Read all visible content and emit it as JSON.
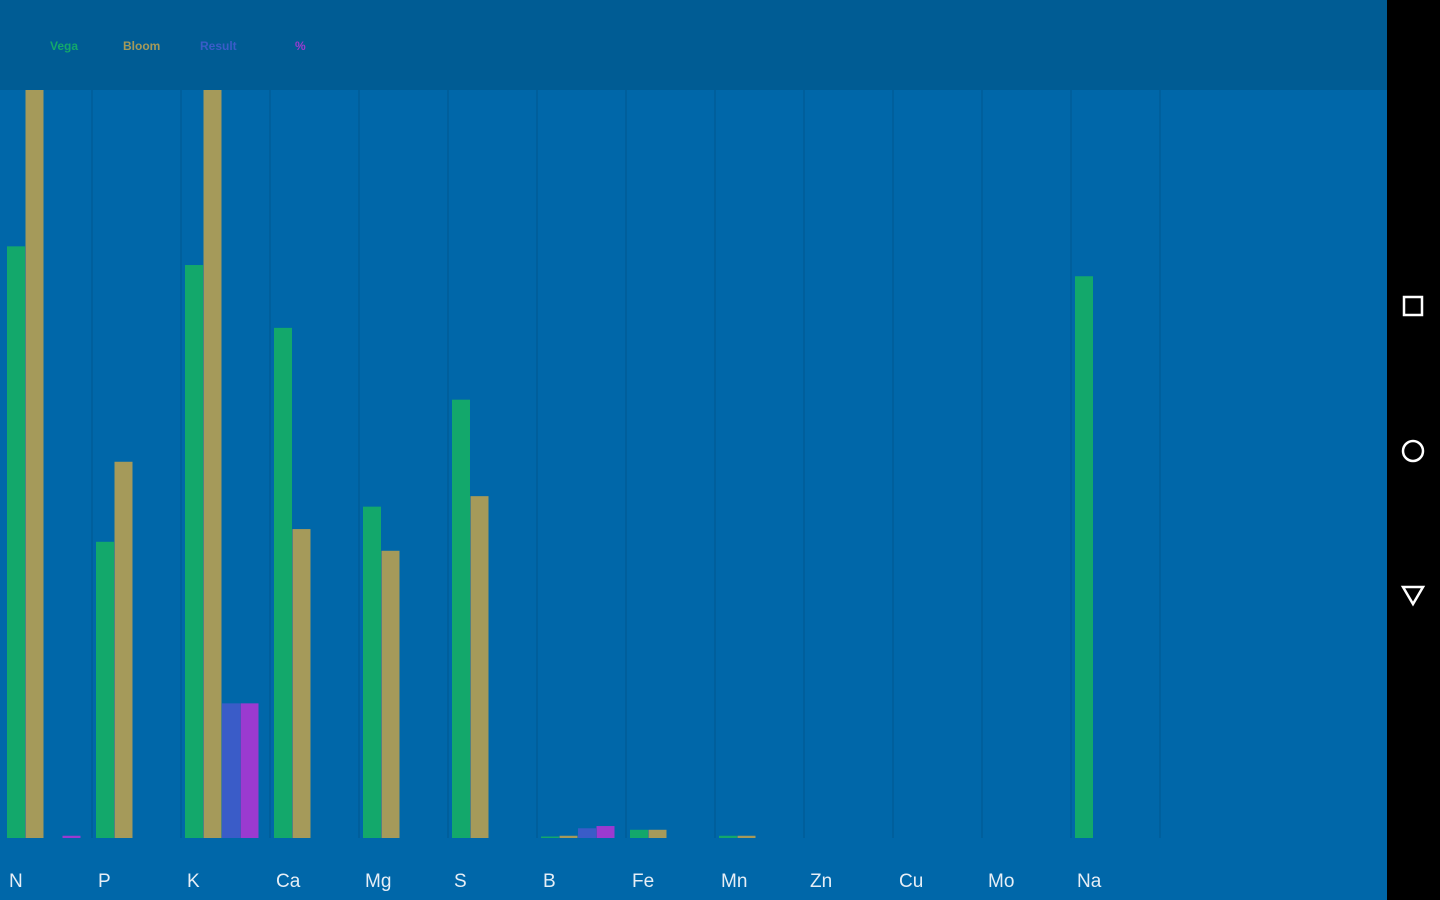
{
  "chart_data": {
    "type": "bar",
    "categories": [
      "N",
      "P",
      "K",
      "Ca",
      "Mg",
      "S",
      "B",
      "Fe",
      "Mn",
      "Zn",
      "Cu",
      "Mo",
      "Na"
    ],
    "series": [
      {
        "name": "Vega",
        "color": "#13a86b",
        "values": [
          79.1,
          39.6,
          76.6,
          68.2,
          44.3,
          58.6,
          0.2,
          1.1,
          0.3,
          0,
          0,
          0,
          75.1
        ]
      },
      {
        "name": "Bloom",
        "color": "#a59a5a",
        "values": [
          100,
          50.3,
          100,
          41.3,
          38.4,
          45.7,
          0.3,
          1.1,
          0.3,
          0,
          0,
          0,
          0
        ]
      },
      {
        "name": "Result",
        "color": "#3a5cc8",
        "values": [
          0,
          0,
          18.0,
          0,
          0,
          0,
          1.3,
          0,
          0,
          0,
          0,
          0,
          0
        ]
      },
      {
        "name": "%",
        "color": "#9b3ad0",
        "values": [
          0.3,
          0,
          18.0,
          0,
          0,
          0,
          1.6,
          0,
          0,
          0,
          0,
          0,
          0
        ]
      }
    ],
    "ylim": [
      0,
      100
    ]
  }
}
